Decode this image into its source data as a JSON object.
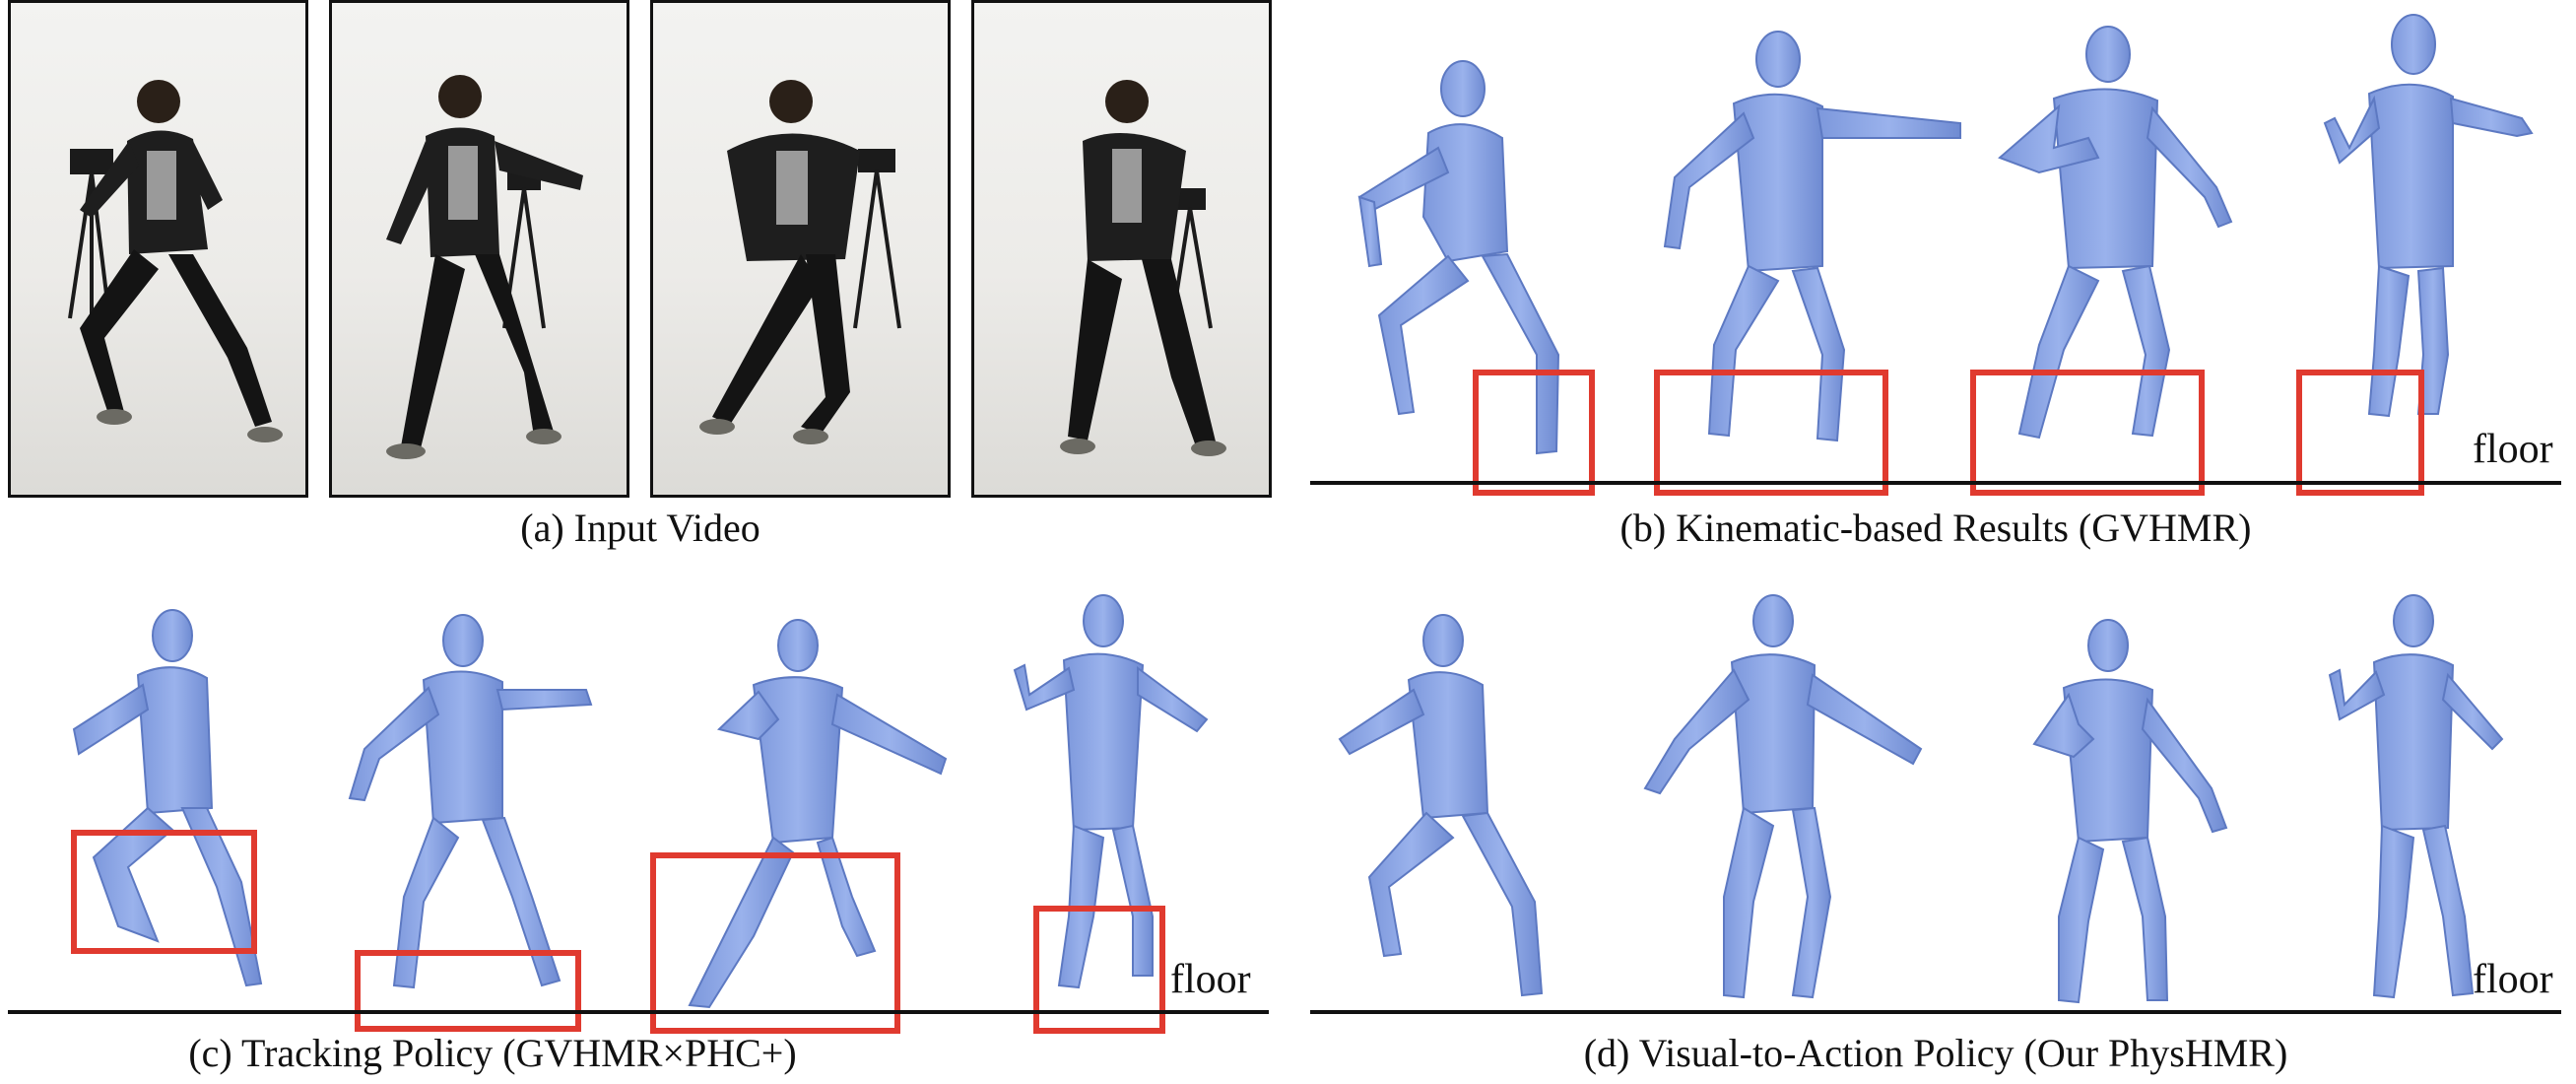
{
  "captions": {
    "a": "(a) Input Video",
    "b": "(b) Kinematic-based Results (GVHMR)",
    "c": "(c) Tracking Policy (GVHMR×PHC+)",
    "d": "(d) Visual-to-Action Policy (Our PhysHMR)"
  },
  "floor_label": "floor",
  "colors": {
    "mesh": "#8ea8e6",
    "mesh_shade": "#6f8dd6",
    "highlight": "#e03a2f"
  }
}
